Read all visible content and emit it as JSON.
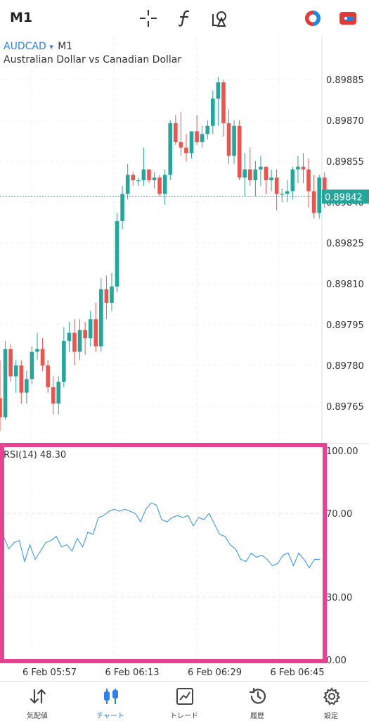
{
  "toolbar": {
    "timeframe": "M1",
    "icons": [
      "crosshair-icon",
      "function-icon",
      "objects-icon",
      "trading-icon",
      "account-icon"
    ]
  },
  "symbol": {
    "name": "AUDCAD",
    "dropdown": "▾",
    "timeframe": "M1",
    "description": "Australian Dollar vs Canadian Dollar"
  },
  "price_axis": {
    "labels": [
      "0.89885",
      "0.89870",
      "0.89855",
      "0.89840",
      "0.89825",
      "0.89810",
      "0.89795",
      "0.89780",
      "0.89765"
    ],
    "current_price": "0.89842"
  },
  "rsi": {
    "label": "RSI(14) 48.30",
    "levels": [
      "100.00",
      "70.00",
      "30.00",
      "0.00"
    ]
  },
  "time_axis": {
    "labels": [
      "6 Feb 05:57",
      "6 Feb 06:13",
      "6 Feb 06:29",
      "6 Feb 06:45"
    ]
  },
  "nav": {
    "items": [
      {
        "label": "気配値",
        "icon": "quotes-icon"
      },
      {
        "label": "チャート",
        "icon": "chart-icon"
      },
      {
        "label": "トレード",
        "icon": "trade-icon"
      },
      {
        "label": "履歴",
        "icon": "history-icon"
      },
      {
        "label": "設定",
        "icon": "settings-icon"
      }
    ],
    "active": 1
  },
  "colors": {
    "bull": "#26a69a",
    "bear": "#ef5350",
    "accent": "#2f80ed",
    "highlight": "#e84393"
  },
  "chart_data": {
    "type": "candlestick",
    "title": "",
    "price_range": [
      0.8976,
      0.8989
    ],
    "candles": [
      [
        0.89768,
        0.89782,
        0.89756,
        0.89761
      ],
      [
        0.89761,
        0.89789,
        0.8976,
        0.89786
      ],
      [
        0.89786,
        0.89788,
        0.89774,
        0.89776
      ],
      [
        0.89776,
        0.89782,
        0.8977,
        0.8978
      ],
      [
        0.8978,
        0.89782,
        0.89766,
        0.8977
      ],
      [
        0.8977,
        0.89778,
        0.89766,
        0.89775
      ],
      [
        0.89775,
        0.89787,
        0.89773,
        0.89785
      ],
      [
        0.89785,
        0.89792,
        0.89782,
        0.89786
      ],
      [
        0.89786,
        0.8979,
        0.89778,
        0.8978
      ],
      [
        0.8978,
        0.89782,
        0.8977,
        0.89772
      ],
      [
        0.89772,
        0.89776,
        0.89762,
        0.89766
      ],
      [
        0.89766,
        0.89776,
        0.89762,
        0.89774
      ],
      [
        0.89774,
        0.89794,
        0.89772,
        0.89789
      ],
      [
        0.89789,
        0.89796,
        0.89785,
        0.89792
      ],
      [
        0.89792,
        0.89797,
        0.8978,
        0.89785
      ],
      [
        0.89785,
        0.89797,
        0.89782,
        0.89793
      ],
      [
        0.89793,
        0.89796,
        0.89784,
        0.8979
      ],
      [
        0.8979,
        0.898,
        0.89787,
        0.89797
      ],
      [
        0.89797,
        0.89803,
        0.89785,
        0.89787
      ],
      [
        0.89787,
        0.89812,
        0.89785,
        0.89808
      ],
      [
        0.89808,
        0.89813,
        0.89797,
        0.89803
      ],
      [
        0.89803,
        0.89814,
        0.898,
        0.89809
      ],
      [
        0.89809,
        0.89836,
        0.89807,
        0.89833
      ],
      [
        0.89833,
        0.89846,
        0.8983,
        0.89843
      ],
      [
        0.89843,
        0.89854,
        0.89841,
        0.8985
      ],
      [
        0.8985,
        0.89851,
        0.89846,
        0.89848
      ],
      [
        0.89848,
        0.89849,
        0.89846,
        0.89848
      ],
      [
        0.89848,
        0.8986,
        0.89846,
        0.89852
      ],
      [
        0.89852,
        0.89852,
        0.89847,
        0.89848
      ],
      [
        0.89848,
        0.89851,
        0.89845,
        0.89849
      ],
      [
        0.89849,
        0.8985,
        0.89842,
        0.89843
      ],
      [
        0.89843,
        0.89852,
        0.89839,
        0.8985
      ],
      [
        0.8985,
        0.8987,
        0.89848,
        0.89869
      ],
      [
        0.89869,
        0.89872,
        0.89861,
        0.89862
      ],
      [
        0.89862,
        0.89873,
        0.89857,
        0.8986
      ],
      [
        0.8986,
        0.89865,
        0.89855,
        0.89858
      ],
      [
        0.89858,
        0.89866,
        0.89856,
        0.89866
      ],
      [
        0.89866,
        0.89872,
        0.89861,
        0.89862
      ],
      [
        0.89862,
        0.89868,
        0.8986,
        0.89865
      ],
      [
        0.89865,
        0.8987,
        0.89863,
        0.89868
      ],
      [
        0.89868,
        0.89881,
        0.89865,
        0.89878
      ],
      [
        0.89878,
        0.89886,
        0.89868,
        0.89884
      ],
      [
        0.89884,
        0.89885,
        0.89864,
        0.89869
      ],
      [
        0.89869,
        0.89874,
        0.89854,
        0.89857
      ],
      [
        0.89857,
        0.8987,
        0.89854,
        0.89868
      ],
      [
        0.89868,
        0.8987,
        0.89848,
        0.89849
      ],
      [
        0.89849,
        0.89858,
        0.89842,
        0.89852
      ],
      [
        0.89852,
        0.8986,
        0.89846,
        0.89848
      ],
      [
        0.89848,
        0.89855,
        0.89842,
        0.89852
      ],
      [
        0.89852,
        0.89857,
        0.89846,
        0.89853
      ],
      [
        0.89853,
        0.89853,
        0.89843,
        0.89848
      ],
      [
        0.89848,
        0.89852,
        0.89844,
        0.89849
      ],
      [
        0.89849,
        0.89852,
        0.89837,
        0.89843
      ],
      [
        0.89843,
        0.89845,
        0.8984,
        0.89843
      ],
      [
        0.89843,
        0.89848,
        0.8984,
        0.89844
      ],
      [
        0.89844,
        0.89853,
        0.89841,
        0.89852
      ],
      [
        0.89852,
        0.89857,
        0.89847,
        0.89853
      ],
      [
        0.89853,
        0.89858,
        0.89847,
        0.89852
      ],
      [
        0.89852,
        0.89856,
        0.89838,
        0.89844
      ],
      [
        0.89844,
        0.8985,
        0.89834,
        0.89836
      ],
      [
        0.89836,
        0.8985,
        0.89834,
        0.89849
      ],
      [
        0.89849,
        0.89851,
        0.89838,
        0.89842
      ]
    ],
    "rsi_range": [
      0,
      100
    ],
    "rsi_values": [
      59,
      53,
      56,
      57,
      47,
      55,
      48,
      52,
      56,
      57,
      59,
      54,
      55,
      52,
      58,
      54,
      61,
      60,
      68,
      69,
      71,
      72,
      71,
      72,
      71,
      70,
      66,
      72,
      75,
      74,
      67,
      66,
      68,
      69,
      68,
      69,
      64,
      68,
      67,
      70,
      65,
      60,
      59,
      55,
      53,
      48,
      47,
      51,
      49,
      50,
      48,
      45,
      46,
      50,
      51,
      45,
      51,
      48,
      44,
      48,
      48
    ]
  }
}
